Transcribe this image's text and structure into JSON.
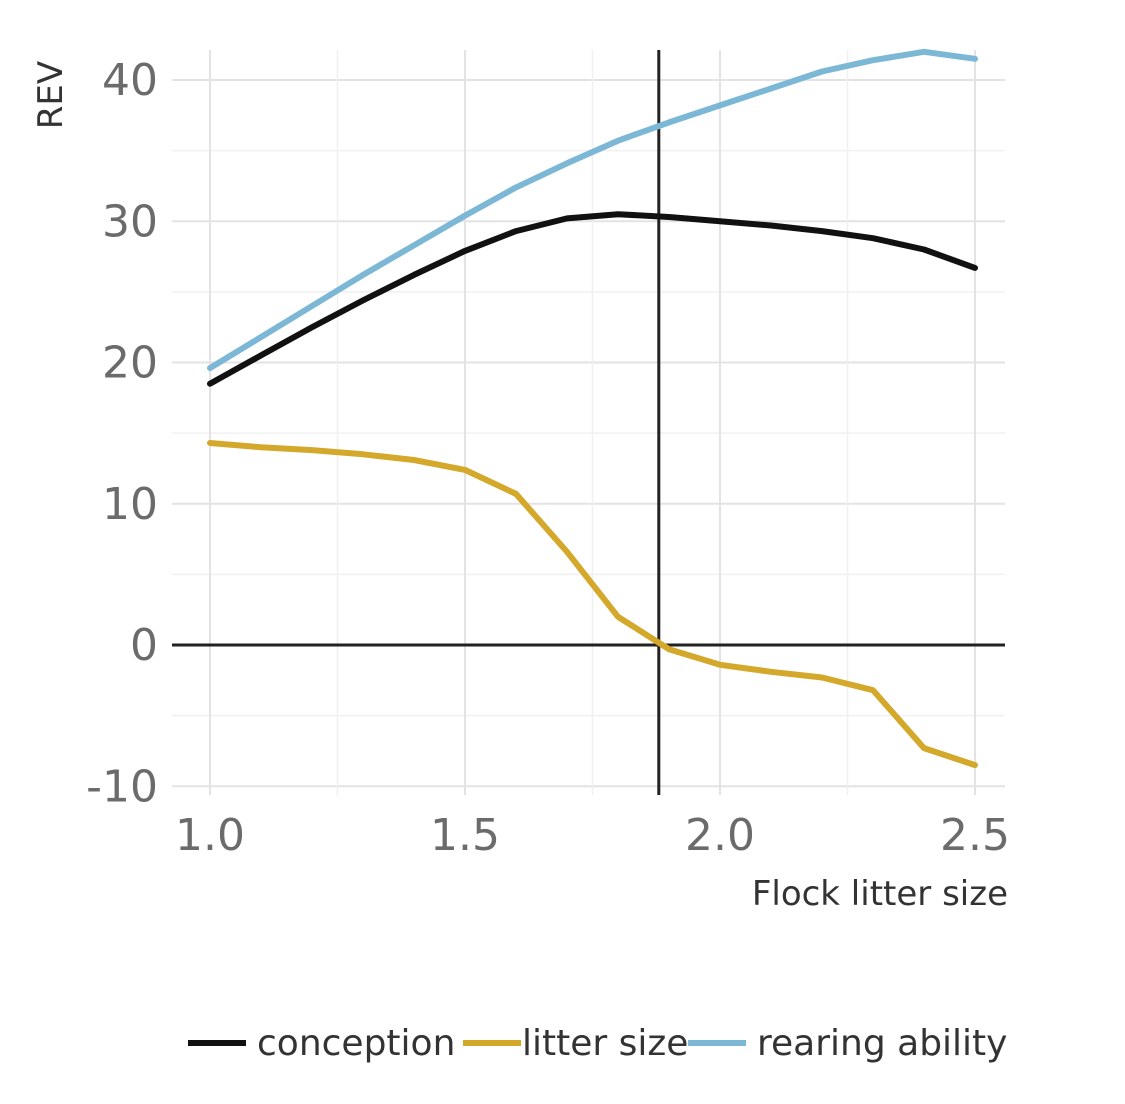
{
  "chart_data": {
    "type": "line",
    "title": "",
    "xlabel": "Flock litter size",
    "ylabel": "REV",
    "xlim": [
      0.99,
      2.58
    ],
    "ylim": [
      -11,
      42.5
    ],
    "x_ticks": [
      1.0,
      1.5,
      2.0,
      2.5
    ],
    "x_tick_labels": [
      "1.0",
      "1.5",
      "2.0",
      "2.5"
    ],
    "y_ticks": [
      -10,
      0,
      10,
      20,
      30,
      40
    ],
    "y_tick_labels": [
      "-10",
      "0",
      "10",
      "20",
      "30",
      "40"
    ],
    "grid": true,
    "legend_position": "bottom",
    "reference_lines": {
      "x": 1.88,
      "y": 0
    },
    "series": [
      {
        "name": "conception",
        "color": "#111111",
        "x": [
          1.0,
          1.1,
          1.2,
          1.3,
          1.4,
          1.5,
          1.6,
          1.7,
          1.8,
          1.9,
          2.0,
          2.1,
          2.2,
          2.3,
          2.4,
          2.5
        ],
        "y": [
          18.5,
          20.5,
          22.5,
          24.4,
          26.2,
          27.9,
          29.3,
          30.2,
          30.5,
          30.3,
          30.0,
          29.7,
          29.3,
          28.8,
          28.0,
          26.7
        ]
      },
      {
        "name": "litter size",
        "color": "#d4a82a",
        "x": [
          1.0,
          1.1,
          1.2,
          1.3,
          1.4,
          1.5,
          1.6,
          1.7,
          1.8,
          1.9,
          2.0,
          2.1,
          2.2,
          2.3,
          2.4,
          2.5
        ],
        "y": [
          14.3,
          14.0,
          13.8,
          13.5,
          13.1,
          12.4,
          10.7,
          6.6,
          2.0,
          -0.3,
          -1.4,
          -1.9,
          -2.3,
          -3.2,
          -7.3,
          -8.5
        ]
      },
      {
        "name": "rearing ability",
        "color": "#7cb8d6",
        "x": [
          1.0,
          1.1,
          1.2,
          1.3,
          1.4,
          1.5,
          1.6,
          1.7,
          1.8,
          1.9,
          2.0,
          2.1,
          2.2,
          2.3,
          2.4,
          2.5
        ],
        "y": [
          19.6,
          21.8,
          24.0,
          26.2,
          28.3,
          30.4,
          32.4,
          34.1,
          35.7,
          37.0,
          38.2,
          39.4,
          40.6,
          41.4,
          42.0,
          41.5
        ]
      }
    ]
  }
}
